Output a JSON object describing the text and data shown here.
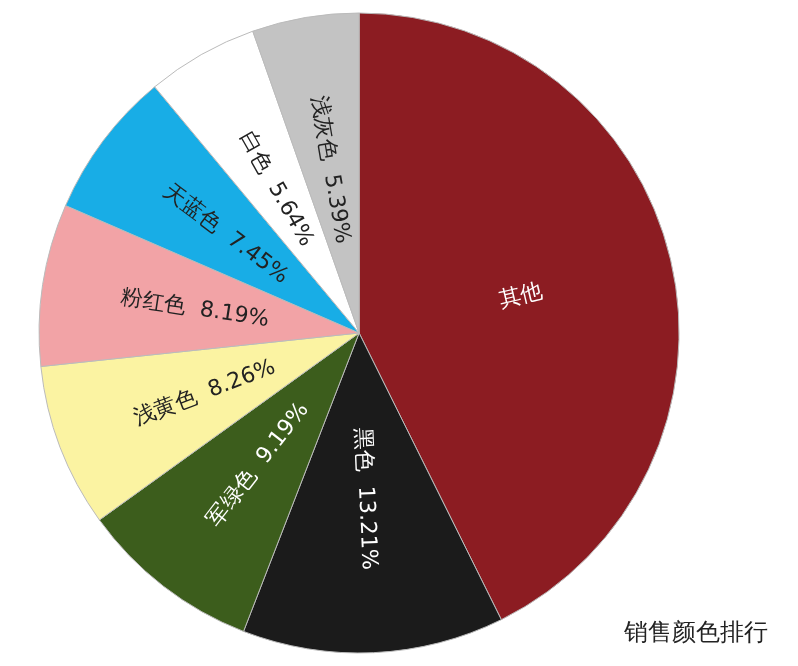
{
  "chart_data": {
    "type": "pie",
    "title": "销售颜色排行",
    "categories": [
      "其他",
      "黑色",
      "军绿色",
      "浅黄色",
      "粉红色",
      "天蓝色",
      "白色",
      "浅灰色"
    ],
    "values": [
      42.67,
      13.21,
      9.19,
      8.26,
      8.19,
      7.45,
      5.64,
      5.39
    ],
    "value_labels": [
      null,
      "13.21%",
      "9.19%",
      "8.26%",
      "8.19%",
      "7.45%",
      "5.64%",
      "5.39%"
    ],
    "colors": [
      "#8c1c22",
      "#1b1b1b",
      "#3c5d1c",
      "#fbf3a2",
      "#f2a3a6",
      "#18ade6",
      "#ffffff",
      "#c3c3c3"
    ],
    "legend": false
  }
}
